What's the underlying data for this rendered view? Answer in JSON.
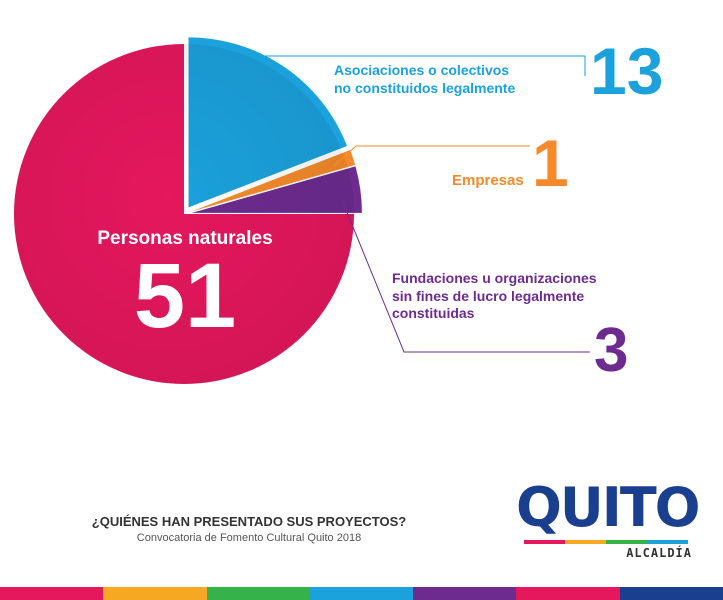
{
  "chart_data": {
    "type": "pie",
    "title": "",
    "slices": [
      {
        "label": "Personas naturales",
        "value": 51,
        "color": "#e5175d"
      },
      {
        "label": "Asociaciones o colectivos no constituidos legalmente",
        "value": 13,
        "color": "#1ba1dc"
      },
      {
        "label": "Empresas",
        "value": 1,
        "color": "#f48a2b"
      },
      {
        "label": "Fundaciones u organizaciones sin fines de lucro legalmente constituidas",
        "value": 3,
        "color": "#6d2b8f"
      }
    ]
  },
  "labels": {
    "personas_label": "Personas naturales",
    "personas_value": "51",
    "asociaciones_line1": "Asociaciones o colectivos",
    "asociaciones_line2": "no constituidos legalmente",
    "asociaciones_value": "13",
    "empresas_label": "Empresas",
    "empresas_value": "1",
    "fundaciones_line1": "Fundaciones u organizaciones",
    "fundaciones_line2": "sin fines de lucro legalmente",
    "fundaciones_line3": "constituidas",
    "fundaciones_value": "3"
  },
  "footer": {
    "title": "¿QUIÉNES HAN PRESENTADO SUS PROYECTOS?",
    "subtitle": "Convocatoria de Fomento Cultural Quito 2018"
  },
  "logo": {
    "word": "QUITO",
    "sub": "ALCALDÍA",
    "brand_color": "#1b3f8f"
  },
  "stripe_colors": [
    "#e5175d",
    "#f7a823",
    "#36b24a",
    "#1ba1dc",
    "#6d2b8f",
    "#e5175d",
    "#1b3f8f"
  ]
}
